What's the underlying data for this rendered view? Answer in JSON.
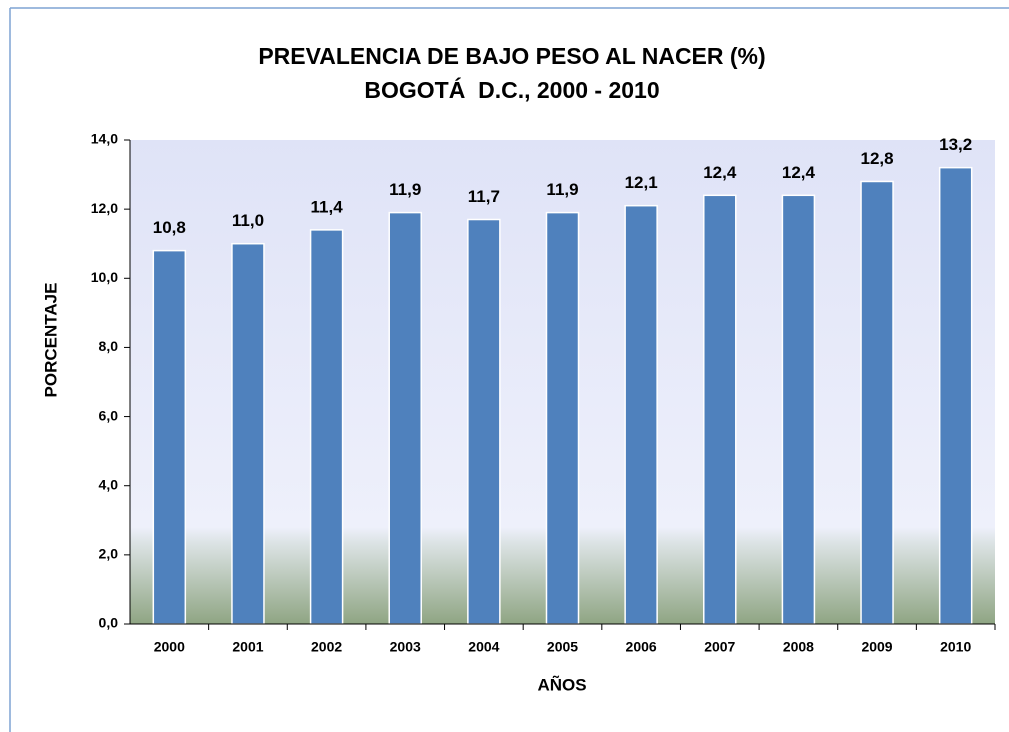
{
  "chart_data": {
    "type": "bar",
    "title": "PREVALENCIA DE BAJO PESO AL NACER (%)",
    "subtitle": "BOGOTÁ  D.C., 2000 - 2010",
    "x_label": "AÑOS",
    "y_label": "PORCENTAJE",
    "categories": [
      "2000",
      "2001",
      "2002",
      "2003",
      "2004",
      "2005",
      "2006",
      "2007",
      "2008",
      "2009",
      "2010"
    ],
    "values": [
      10.8,
      11.0,
      11.4,
      11.9,
      11.7,
      11.9,
      12.1,
      12.4,
      12.4,
      12.8,
      13.2
    ],
    "value_labels": [
      "10,8",
      "11,0",
      "11,4",
      "11,9",
      "11,7",
      "11,9",
      "12,1",
      "12,4",
      "12,4",
      "12,8",
      "13,2"
    ],
    "color": "#4f81bd",
    "ylim": [
      0,
      14
    ],
    "yticks": [
      {
        "value": 0,
        "label": "0,0"
      },
      {
        "value": 2,
        "label": "2,0"
      },
      {
        "value": 4,
        "label": "4,0"
      },
      {
        "value": 6,
        "label": "6,0"
      },
      {
        "value": 8,
        "label": "8,0"
      },
      {
        "value": 10,
        "label": "10,0"
      },
      {
        "value": 12,
        "label": "12,0"
      },
      {
        "value": 14,
        "label": "14,0"
      }
    ]
  }
}
